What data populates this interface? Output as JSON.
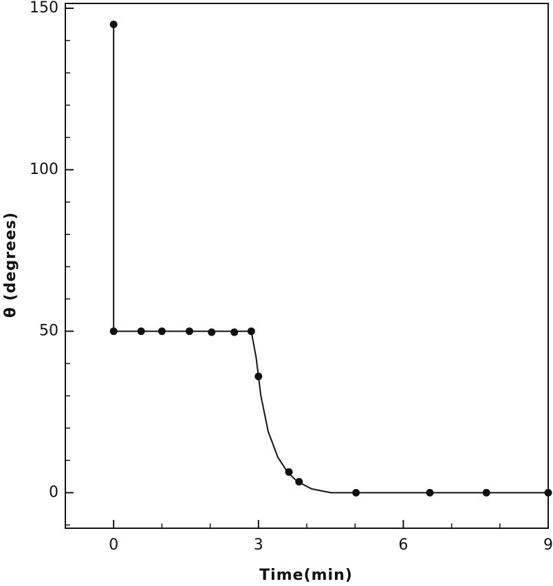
{
  "chart_data": {
    "type": "scatter-line",
    "x_label": "Time(min)",
    "y_label": "θ (degrees)",
    "xlim": [
      -1,
      9
    ],
    "ylim": [
      -11,
      150
    ],
    "xticks": [
      0,
      3,
      6,
      9
    ],
    "yticks": [
      0,
      50,
      100,
      150
    ],
    "xticks_minor": [
      -1,
      1,
      2,
      4,
      5,
      7,
      8
    ],
    "yticks_minor": [
      -10,
      10,
      20,
      30,
      40,
      60,
      70,
      80,
      90,
      110,
      120,
      130,
      140
    ],
    "color": "#111111",
    "series": [
      {
        "style": "markers",
        "x": [
          0,
          0,
          0.57,
          1.0,
          1.57,
          2.03,
          2.5,
          2.85,
          3.0,
          3.63,
          3.84,
          5.02,
          6.55,
          7.72,
          9
        ],
        "values": [
          145,
          50,
          50,
          50,
          50,
          49.7,
          49.7,
          50,
          36,
          6.4,
          3.4,
          0,
          0,
          0,
          0
        ]
      },
      {
        "style": "line",
        "x": [
          0,
          0,
          2.85,
          2.95,
          3.05,
          3.2,
          3.4,
          3.6,
          3.8,
          4.1,
          4.5,
          9
        ],
        "values": [
          145,
          50,
          50,
          42,
          30,
          19,
          11,
          6.4,
          3.5,
          1.2,
          0,
          0
        ]
      }
    ]
  }
}
